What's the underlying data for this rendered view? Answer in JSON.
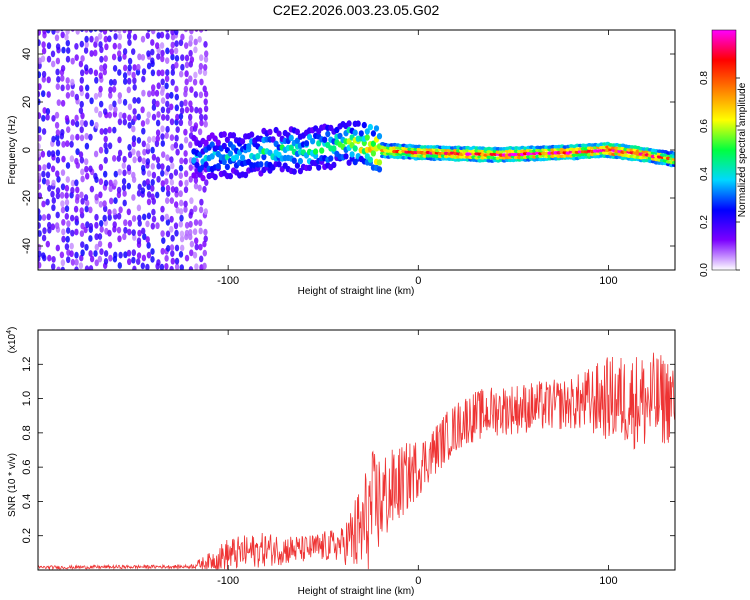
{
  "title": "C2E2.2026.003.23.05.G02",
  "chart_data": [
    {
      "type": "heatmap",
      "xlabel": "Height of straight line (km)",
      "ylabel": "Frequency (Hz)",
      "xlim": [
        -200,
        135
      ],
      "ylim": [
        -50,
        50
      ],
      "xticks": [
        -100,
        0,
        100
      ],
      "xtick_labels": [
        "-100",
        "0",
        "100"
      ],
      "yticks": [
        -40,
        -20,
        0,
        20,
        40
      ],
      "ytick_labels": [
        "-40",
        "-20",
        "0",
        "20",
        "40"
      ],
      "signal_track": {
        "x": [
          -115,
          -80,
          -50,
          -35,
          -22,
          0,
          40,
          80,
          100,
          120,
          135
        ],
        "freq": [
          -3,
          -1,
          1,
          3,
          0,
          -1,
          -2,
          -1,
          0,
          -2,
          -4
        ],
        "amplitude": [
          0.35,
          0.45,
          0.45,
          0.55,
          0.8,
          0.85,
          0.9,
          0.88,
          0.95,
          0.9,
          0.7
        ]
      },
      "noise_region": {
        "x_range": [
          -200,
          -110
        ],
        "amplitude": 0.2
      },
      "colorbar": {
        "label": "Normalized spectral amplitude",
        "range": [
          0,
          1
        ],
        "ticks": [
          0.0,
          0.2,
          0.4,
          0.6,
          0.8
        ],
        "tick_labels": [
          "0.0",
          "0.2",
          "0.4",
          "0.6",
          "0.8"
        ],
        "colors": [
          "#ffffff",
          "#7b00ff",
          "#0000ff",
          "#00d8ff",
          "#00ff40",
          "#ffff00",
          "#ff8000",
          "#ff0000",
          "#ff00ff"
        ]
      }
    },
    {
      "type": "line",
      "xlabel": "Height of straight line (km)",
      "ylabel": "SNR (10 * v/v)",
      "scale_label": "(x10",
      "scale_exponent": "4",
      "scale_suffix": ")",
      "xlim": [
        -200,
        135
      ],
      "ylim": [
        0,
        1.4
      ],
      "xticks": [
        -100,
        0,
        100
      ],
      "xtick_labels": [
        "-100",
        "0",
        "100"
      ],
      "yticks": [
        0.2,
        0.4,
        0.6,
        0.8,
        1.0,
        1.2
      ],
      "ytick_labels": [
        "0.2",
        "0.4",
        "0.6",
        "0.8",
        "1.0",
        "1.2"
      ],
      "color": "#ee3333",
      "series_envelope": {
        "x": [
          -200,
          -120,
          -110,
          -100,
          -80,
          -60,
          -40,
          -30,
          -25,
          -15,
          -5,
          5,
          15,
          25,
          40,
          60,
          80,
          100,
          120,
          135
        ],
        "mean": [
          0.015,
          0.02,
          0.05,
          0.09,
          0.12,
          0.12,
          0.15,
          0.22,
          0.35,
          0.45,
          0.55,
          0.65,
          0.78,
          0.88,
          0.93,
          0.95,
          0.97,
          1.0,
          0.98,
          1.0
        ],
        "spread": [
          0.01,
          0.01,
          0.05,
          0.1,
          0.1,
          0.08,
          0.1,
          0.3,
          0.35,
          0.25,
          0.2,
          0.15,
          0.15,
          0.15,
          0.15,
          0.15,
          0.15,
          0.25,
          0.3,
          0.25
        ]
      }
    }
  ]
}
